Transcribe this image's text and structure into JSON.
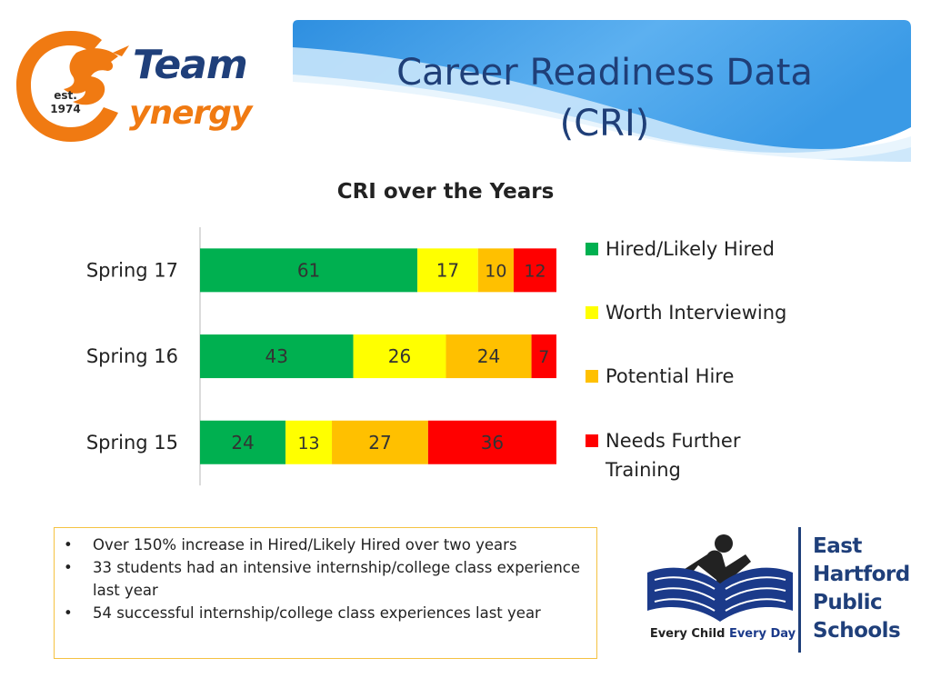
{
  "slide": {
    "title_line1": "Career Readiness Data",
    "title_line2": "(CRI)"
  },
  "team_logo": {
    "word1": "Team",
    "word2": "ynergy",
    "est_label": "est.",
    "est_year": "1974"
  },
  "chart_data": {
    "type": "bar",
    "orientation": "horizontal",
    "stacked": true,
    "title": "CRI over the Years",
    "categories": [
      "Spring 17",
      "Spring 16",
      "Spring 15"
    ],
    "series": [
      {
        "name": "Hired/Likely Hired",
        "color": "#00b050",
        "values": [
          61,
          43,
          24
        ]
      },
      {
        "name": "Worth Interviewing",
        "color": "#ffff00",
        "values": [
          17,
          26,
          13
        ]
      },
      {
        "name": "Potential Hire",
        "color": "#ffc000",
        "values": [
          10,
          24,
          27
        ]
      },
      {
        "name": "Needs Further Training",
        "color": "#ff0000",
        "values": [
          12,
          7,
          36
        ]
      }
    ],
    "legend_position": "right",
    "xlabel": "",
    "ylabel": "",
    "grid": false
  },
  "notes": {
    "items": [
      "Over 150% increase in Hired/Likely Hired over two years",
      "33 students had an intensive internship/college class experience last year",
      "54 successful internship/college class experiences last year"
    ],
    "bullet": "•"
  },
  "district_logo": {
    "tagline_part1": "Every Child ",
    "tagline_part2": "Every Day",
    "name_lines": [
      "East",
      "Hartford",
      "Public",
      "Schools"
    ]
  },
  "colors": {
    "title_blue": "#1f3f78",
    "accent_orange": "#f07a12",
    "notes_border": "#f5c242"
  }
}
